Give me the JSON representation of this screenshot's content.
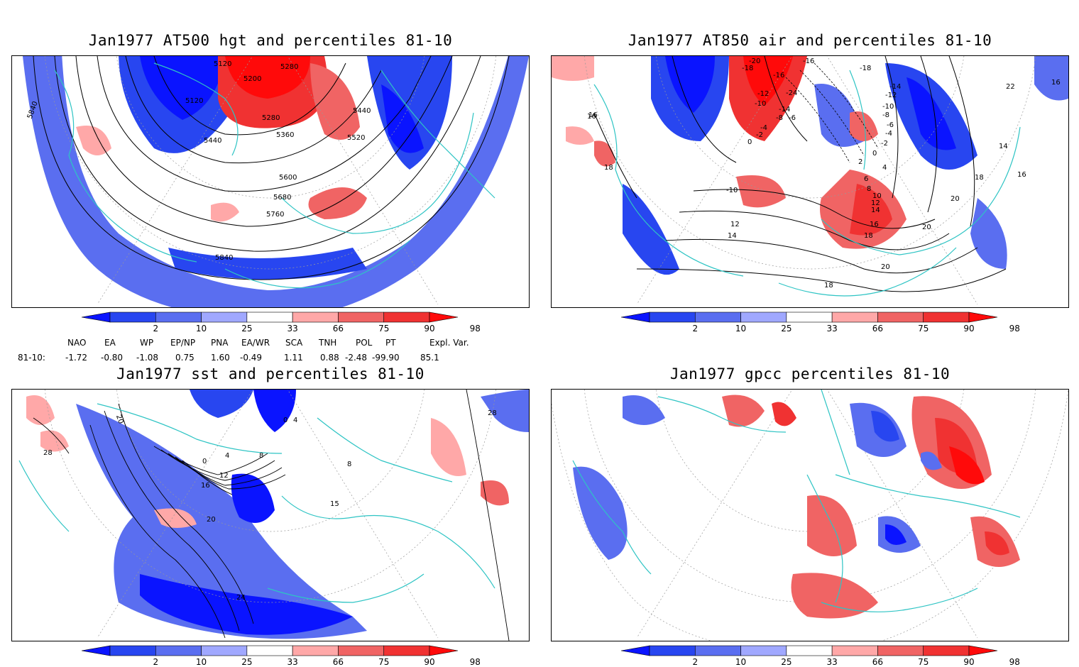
{
  "panels": [
    {
      "title": "Jan1977 AT500 hgt and percentiles 81-10",
      "contour_labels": [
        "5120",
        "5280",
        "5200",
        "5120",
        "5440",
        "5280",
        "5360",
        "5440",
        "5520",
        "5600",
        "5680",
        "5760",
        "5840",
        "5840"
      ]
    },
    {
      "title": "Jan1977 AT850 air and percentiles 81-10",
      "contour_labels": [
        "-20",
        "-18",
        "-16",
        "-12",
        "-10",
        "-14",
        "-24",
        "-8",
        "-6",
        "-4",
        "-2",
        "0",
        "-16",
        "-18",
        "-14",
        "-12",
        "-10",
        "-8",
        "-6",
        "-4",
        "-2",
        "0",
        "2",
        "4",
        "6",
        "8",
        "10",
        "12",
        "14",
        "16",
        "18",
        "20",
        "22",
        "16",
        "16",
        "16",
        "14",
        "16",
        "18",
        "20",
        "-10",
        "12",
        "14",
        "18",
        "18",
        "20"
      ]
    },
    {
      "title": "Jan1977 sst and percentiles 81-10",
      "contour_labels": [
        "20",
        "28",
        "0",
        "4",
        "8",
        "12",
        "16",
        "20",
        "24",
        "15",
        "8",
        "28",
        "4",
        "0"
      ]
    },
    {
      "title": "Jan1977 gpcc percentiles 81-10",
      "contour_labels": []
    }
  ],
  "colorbar": {
    "labels": [
      "2",
      "10",
      "25",
      "33",
      "66",
      "75",
      "90",
      "98"
    ],
    "colors": [
      "#0a14ff",
      "#2846f0",
      "#5a6ef0",
      "#a0a8ff",
      "#ffffff",
      "#ffa8a8",
      "#f06464",
      "#f03232",
      "#ff0a0a"
    ]
  },
  "indices": {
    "header": [
      "NAO",
      "EA",
      "WP",
      "EP/NP",
      "PNA",
      "EA/WR",
      "SCA",
      "TNH",
      "POL",
      "PT",
      "Expl. Var."
    ],
    "row_label": "81-10:",
    "values": [
      "-1.72",
      "-0.80",
      "-1.08",
      "0.75",
      "1.60",
      "-0.49",
      "1.11",
      "0.88",
      "-2.48",
      "-99.90",
      "85.1"
    ]
  },
  "map_colors": {
    "coast": "#2ec4c4",
    "contour": "#000000",
    "graticule": "#999999"
  }
}
